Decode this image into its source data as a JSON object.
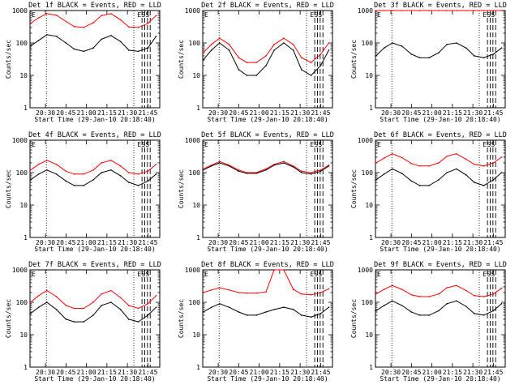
{
  "figure": {
    "x_axis_title": "Start Time (29-Jan-10 20:18:40)",
    "y_axis_title": "Counts/sec",
    "y_tick_labels": [
      "1",
      "10",
      "100",
      "1000"
    ],
    "x_tick_labels": [
      "20:30",
      "20:45",
      "21:00",
      "21:15",
      "21:30",
      "21:45"
    ],
    "markers": [
      "E",
      "S",
      "S"
    ]
  },
  "chart_data": [
    {
      "type": "line",
      "title": "Det 1f BLACK = Events, RED = LLD",
      "xlabel": "Start Time (29-Jan-10 20:18:40)",
      "ylabel": "Counts/sec",
      "ylog": true,
      "ylim": [
        1,
        1000
      ],
      "xlim_minutes_after_start": [
        0,
        95
      ],
      "x": [
        "20:19",
        "20:25",
        "20:31",
        "20:38",
        "20:45",
        "20:51",
        "20:58",
        "21:05",
        "21:11",
        "21:18",
        "21:25",
        "21:31",
        "21:38",
        "21:45",
        "21:51"
      ],
      "series": [
        {
          "name": "BLACK = Events",
          "color": "#000000",
          "values": [
            80,
            120,
            180,
            160,
            100,
            65,
            55,
            70,
            130,
            170,
            110,
            60,
            55,
            70,
            160
          ]
        },
        {
          "name": "RED = LLD",
          "color": "#ff0000",
          "values": [
            400,
            600,
            800,
            720,
            460,
            320,
            300,
            420,
            700,
            800,
            520,
            310,
            300,
            400,
            700
          ]
        }
      ]
    },
    {
      "type": "line",
      "title": "Det 2f BLACK = Events, RED = LLD",
      "xlabel": "Start Time (29-Jan-10 20:18:40)",
      "ylabel": "Counts/sec",
      "ylog": true,
      "ylim": [
        1,
        1000
      ],
      "xlim_minutes_after_start": [
        0,
        95
      ],
      "x": [
        "20:19",
        "20:25",
        "20:31",
        "20:38",
        "20:45",
        "20:51",
        "20:58",
        "21:05",
        "21:11",
        "21:18",
        "21:25",
        "21:31",
        "21:38",
        "21:45",
        "21:51"
      ],
      "series": [
        {
          "name": "BLACK = Events",
          "color": "#000000",
          "values": [
            30,
            60,
            100,
            60,
            15,
            10,
            10,
            20,
            60,
            100,
            60,
            15,
            10,
            20,
            60
          ]
        },
        {
          "name": "RED = LLD",
          "color": "#ff0000",
          "values": [
            50,
            90,
            140,
            90,
            35,
            25,
            25,
            40,
            90,
            140,
            90,
            35,
            25,
            45,
            100
          ]
        }
      ]
    },
    {
      "type": "line",
      "title": "Det 3f BLACK = Events, RED = LLD",
      "xlabel": "Start Time (29-Jan-10 20:18:40)",
      "ylabel": "Counts/sec",
      "ylog": true,
      "ylim": [
        1,
        1000
      ],
      "xlim_minutes_after_start": [
        0,
        95
      ],
      "x": [
        "20:19",
        "20:25",
        "20:31",
        "20:38",
        "20:45",
        "20:51",
        "20:58",
        "21:05",
        "21:11",
        "21:18",
        "21:25",
        "21:31",
        "21:38",
        "21:45",
        "21:51"
      ],
      "series": [
        {
          "name": "BLACK = Events",
          "color": "#000000",
          "values": [
            40,
            70,
            100,
            80,
            45,
            35,
            35,
            50,
            90,
            100,
            70,
            40,
            35,
            45,
            70
          ]
        },
        {
          "name": "RED = LLD",
          "color": "#ff0000",
          "values": [
            1000,
            1000,
            1000,
            1000,
            1000,
            1000,
            1000,
            1000,
            1000,
            1000,
            1000,
            1000,
            1000,
            1000,
            1000
          ]
        }
      ]
    },
    {
      "type": "line",
      "title": "Det 4f BLACK = Events, RED = LLD",
      "xlabel": "Start Time (29-Jan-10 20:18:40)",
      "ylabel": "Counts/sec",
      "ylog": true,
      "ylim": [
        1,
        1000
      ],
      "xlim_minutes_after_start": [
        0,
        95
      ],
      "x": [
        "20:19",
        "20:25",
        "20:31",
        "20:38",
        "20:45",
        "20:51",
        "20:58",
        "21:05",
        "21:11",
        "21:18",
        "21:25",
        "21:31",
        "21:38",
        "21:45",
        "21:51"
      ],
      "series": [
        {
          "name": "BLACK = Events",
          "color": "#000000",
          "values": [
            60,
            90,
            120,
            90,
            55,
            40,
            40,
            60,
            100,
            120,
            80,
            50,
            40,
            55,
            90
          ]
        },
        {
          "name": "RED = LLD",
          "color": "#ff0000",
          "values": [
            120,
            180,
            240,
            180,
            110,
            90,
            90,
            120,
            200,
            240,
            160,
            100,
            90,
            110,
            180
          ]
        }
      ]
    },
    {
      "type": "line",
      "title": "Det 5f BLACK = Events, RED = LLD",
      "xlabel": "Start Time (29-Jan-10 20:18:40)",
      "ylabel": "Counts/sec",
      "ylog": true,
      "ylim": [
        1,
        1000
      ],
      "xlim_minutes_after_start": [
        0,
        95
      ],
      "x": [
        "20:19",
        "20:25",
        "20:31",
        "20:38",
        "20:45",
        "20:51",
        "20:58",
        "21:05",
        "21:11",
        "21:18",
        "21:25",
        "21:31",
        "21:38",
        "21:45",
        "21:51"
      ],
      "series": [
        {
          "name": "BLACK = Events",
          "color": "#000000",
          "values": [
            120,
            160,
            200,
            160,
            110,
            95,
            95,
            120,
            170,
            200,
            150,
            100,
            90,
            110,
            160
          ]
        },
        {
          "name": "RED = LLD",
          "color": "#ff0000",
          "values": [
            130,
            170,
            220,
            170,
            120,
            100,
            100,
            130,
            180,
            220,
            160,
            110,
            100,
            120,
            170
          ]
        }
      ]
    },
    {
      "type": "line",
      "title": "Det 6f BLACK = Events, RED = LLD",
      "xlabel": "Start Time (29-Jan-10 20:18:40)",
      "ylabel": "Counts/sec",
      "ylog": true,
      "ylim": [
        1,
        1000
      ],
      "xlim_minutes_after_start": [
        0,
        95
      ],
      "x": [
        "20:19",
        "20:25",
        "20:31",
        "20:38",
        "20:45",
        "20:51",
        "20:58",
        "21:05",
        "21:11",
        "21:18",
        "21:25",
        "21:31",
        "21:38",
        "21:45",
        "21:51"
      ],
      "series": [
        {
          "name": "BLACK = Events",
          "color": "#000000",
          "values": [
            60,
            90,
            130,
            95,
            55,
            40,
            40,
            60,
            100,
            130,
            85,
            50,
            40,
            60,
            100
          ]
        },
        {
          "name": "RED = LLD",
          "color": "#ff0000",
          "values": [
            200,
            280,
            380,
            290,
            190,
            160,
            160,
            200,
            320,
            380,
            260,
            180,
            160,
            200,
            300
          ]
        }
      ]
    },
    {
      "type": "line",
      "title": "Det 7f BLACK = Events, RED = LLD",
      "xlabel": "Start Time (29-Jan-10 20:18:40)",
      "ylabel": "Counts/sec",
      "ylog": true,
      "ylim": [
        1,
        1000
      ],
      "xlim_minutes_after_start": [
        0,
        95
      ],
      "x": [
        "20:19",
        "20:25",
        "20:31",
        "20:38",
        "20:45",
        "20:51",
        "20:58",
        "21:05",
        "21:11",
        "21:18",
        "21:25",
        "21:31",
        "21:38",
        "21:45",
        "21:51"
      ],
      "series": [
        {
          "name": "BLACK = Events",
          "color": "#000000",
          "values": [
            45,
            70,
            100,
            60,
            30,
            25,
            25,
            40,
            80,
            100,
            60,
            30,
            25,
            40,
            70
          ]
        },
        {
          "name": "RED = LLD",
          "color": "#ff0000",
          "values": [
            100,
            160,
            230,
            150,
            80,
            65,
            65,
            100,
            180,
            230,
            140,
            80,
            65,
            90,
            160
          ]
        }
      ]
    },
    {
      "type": "line",
      "title": "Det 8f BLACK = Events, RED = LLD",
      "xlabel": "Start Time (29-Jan-10 20:18:40)",
      "ylabel": "Counts/sec",
      "ylog": true,
      "ylim": [
        1,
        1000
      ],
      "xlim_minutes_after_start": [
        0,
        95
      ],
      "x": [
        "20:19",
        "20:25",
        "20:31",
        "20:38",
        "20:45",
        "20:51",
        "20:58",
        "21:05",
        "21:11",
        "21:18",
        "21:25",
        "21:31",
        "21:38",
        "21:45",
        "21:51"
      ],
      "series": [
        {
          "name": "BLACK = Events",
          "color": "#000000",
          "values": [
            50,
            70,
            90,
            70,
            50,
            40,
            40,
            50,
            60,
            70,
            60,
            40,
            35,
            45,
            70
          ]
        },
        {
          "name": "RED = LLD",
          "color": "#ff0000",
          "values": [
            200,
            240,
            280,
            240,
            200,
            190,
            190,
            210,
            1000,
            1000,
            250,
            180,
            170,
            200,
            260
          ]
        }
      ]
    },
    {
      "type": "line",
      "title": "Det 9f BLACK = Events, RED = LLD",
      "xlabel": "Start Time (29-Jan-10 20:18:40)",
      "ylabel": "Counts/sec",
      "ylog": true,
      "ylim": [
        1,
        1000
      ],
      "xlim_minutes_after_start": [
        0,
        95
      ],
      "x": [
        "20:19",
        "20:25",
        "20:31",
        "20:38",
        "20:45",
        "20:51",
        "20:58",
        "21:05",
        "21:11",
        "21:18",
        "21:25",
        "21:31",
        "21:38",
        "21:45",
        "21:51"
      ],
      "series": [
        {
          "name": "BLACK = Events",
          "color": "#000000",
          "values": [
            55,
            80,
            110,
            80,
            50,
            40,
            40,
            55,
            90,
            110,
            75,
            45,
            40,
            55,
            90
          ]
        },
        {
          "name": "RED = LLD",
          "color": "#ff0000",
          "values": [
            180,
            250,
            330,
            250,
            170,
            150,
            150,
            180,
            280,
            330,
            230,
            160,
            150,
            180,
            270
          ]
        }
      ]
    }
  ]
}
